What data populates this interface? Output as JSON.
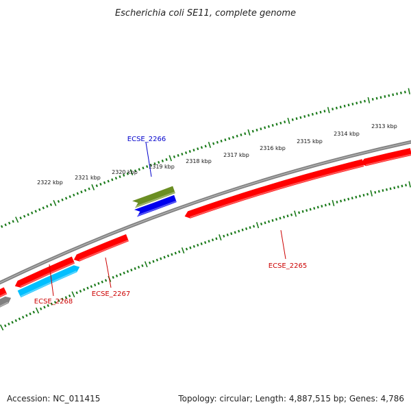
{
  "title": "Escherichia coli SE11, complete genome",
  "footer": {
    "accession": "Accession: NC_011415",
    "summary": "Topology: circular; Length: 4,887,515 bp; Genes: 4,786"
  },
  "ruler_labels": [
    "2313 kbp",
    "2314 kbp",
    "2315 kbp",
    "2316 kbp",
    "2317 kbp",
    "2318 kbp",
    "2319 kbp",
    "2320 kbp",
    "2321 kbp",
    "2322 kbp"
  ],
  "genes": [
    {
      "id": "ECSE_2265",
      "color": "#ff0000",
      "strand": "reverse"
    },
    {
      "id": "ECSE_2266",
      "color": "#0000cc",
      "strand": "forward"
    },
    {
      "id": "ECSE_2267",
      "color": "#cc0000",
      "strand": "reverse"
    },
    {
      "id": "ECSE_2268",
      "color": "#cc0000",
      "strand": "reverse"
    }
  ],
  "colors": {
    "backbone": "#808080",
    "tick": "#1a7a1a",
    "gene_red": "#ff0000",
    "gene_blue": "#0000ee",
    "gene_olive": "#6b8e23",
    "gene_cyan": "#00bfff",
    "gene_gray": "#808080"
  }
}
